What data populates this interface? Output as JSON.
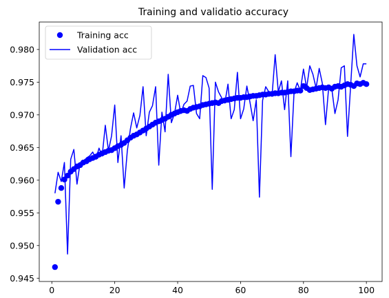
{
  "chart_data": {
    "type": "line",
    "title": "Training and validatio accuracy",
    "xlabel": "",
    "ylabel": "",
    "xlim": [
      -4,
      105
    ],
    "ylim": [
      0.9445,
      0.9842
    ],
    "xticks": [
      0,
      20,
      40,
      60,
      80,
      100
    ],
    "yticks": [
      0.945,
      0.95,
      0.955,
      0.96,
      0.965,
      0.97,
      0.975,
      0.98
    ],
    "ytick_labels": [
      "0.945",
      "0.950",
      "0.955",
      "0.960",
      "0.965",
      "0.970",
      "0.975",
      "0.980"
    ],
    "legend_position": "upper-left",
    "grid": false,
    "series": [
      {
        "name": "Training acc",
        "style": "markers",
        "color": "#0000ff",
        "x": [
          1,
          2,
          3,
          4,
          5,
          6,
          7,
          8,
          9,
          10,
          11,
          12,
          13,
          14,
          15,
          16,
          17,
          18,
          19,
          20,
          21,
          22,
          23,
          24,
          25,
          26,
          27,
          28,
          29,
          30,
          31,
          32,
          33,
          34,
          35,
          36,
          37,
          38,
          39,
          40,
          41,
          42,
          43,
          44,
          45,
          46,
          47,
          48,
          49,
          50,
          51,
          52,
          53,
          54,
          55,
          56,
          57,
          58,
          59,
          60,
          61,
          62,
          63,
          64,
          65,
          66,
          67,
          68,
          69,
          70,
          71,
          72,
          73,
          74,
          75,
          76,
          77,
          78,
          79,
          80,
          81,
          82,
          83,
          84,
          85,
          86,
          87,
          88,
          89,
          90,
          91,
          92,
          93,
          94,
          95,
          96,
          97,
          98,
          99,
          100
        ],
        "values": [
          0.9467,
          0.9567,
          0.9588,
          0.9601,
          0.9607,
          0.9613,
          0.9617,
          0.9621,
          0.9623,
          0.9627,
          0.9629,
          0.9632,
          0.9634,
          0.9636,
          0.9639,
          0.9641,
          0.9643,
          0.9645,
          0.9646,
          0.9649,
          0.9652,
          0.9654,
          0.9657,
          0.9661,
          0.9665,
          0.9668,
          0.967,
          0.9673,
          0.9676,
          0.9679,
          0.9682,
          0.9685,
          0.9688,
          0.969,
          0.9692,
          0.9694,
          0.9697,
          0.97,
          0.9702,
          0.9704,
          0.9706,
          0.9707,
          0.9706,
          0.9709,
          0.9711,
          0.9712,
          0.9713,
          0.9715,
          0.9716,
          0.9717,
          0.9718,
          0.9719,
          0.9718,
          0.9721,
          0.9722,
          0.9723,
          0.9724,
          0.9725,
          0.9726,
          0.9726,
          0.9727,
          0.9727,
          0.9728,
          0.9729,
          0.9729,
          0.973,
          0.9731,
          0.9731,
          0.9732,
          0.9732,
          0.9733,
          0.9733,
          0.9734,
          0.9734,
          0.9735,
          0.9736,
          0.9736,
          0.9737,
          0.9737,
          0.9744,
          0.9741,
          0.9738,
          0.9739,
          0.974,
          0.9741,
          0.9742,
          0.9741,
          0.9742,
          0.974,
          0.9743,
          0.9744,
          0.9743,
          0.9745,
          0.9747,
          0.9746,
          0.9744,
          0.9748,
          0.9747,
          0.9749,
          0.9747
        ]
      },
      {
        "name": "Validation acc",
        "style": "line",
        "color": "#0000ff",
        "x": [
          1,
          2,
          3,
          4,
          5,
          6,
          7,
          8,
          9,
          10,
          11,
          12,
          13,
          14,
          15,
          16,
          17,
          18,
          19,
          20,
          21,
          22,
          23,
          24,
          25,
          26,
          27,
          28,
          29,
          30,
          31,
          32,
          33,
          34,
          35,
          36,
          37,
          38,
          39,
          40,
          41,
          42,
          43,
          44,
          45,
          46,
          47,
          48,
          49,
          50,
          51,
          52,
          53,
          54,
          55,
          56,
          57,
          58,
          59,
          60,
          61,
          62,
          63,
          64,
          65,
          66,
          67,
          68,
          69,
          70,
          71,
          72,
          73,
          74,
          75,
          76,
          77,
          78,
          79,
          80,
          81,
          82,
          83,
          84,
          85,
          86,
          87,
          88,
          89,
          90,
          91,
          92,
          93,
          94,
          95,
          96,
          97,
          98,
          99,
          100
        ],
        "values": [
          0.958,
          0.9612,
          0.9598,
          0.9627,
          0.9487,
          0.9632,
          0.9647,
          0.9594,
          0.9627,
          0.9625,
          0.9634,
          0.9637,
          0.9643,
          0.9632,
          0.9649,
          0.9637,
          0.9684,
          0.9645,
          0.9668,
          0.9715,
          0.9627,
          0.9668,
          0.9588,
          0.9645,
          0.9679,
          0.9703,
          0.968,
          0.9699,
          0.9743,
          0.9668,
          0.9704,
          0.9714,
          0.9743,
          0.9623,
          0.9704,
          0.9674,
          0.9762,
          0.9688,
          0.9702,
          0.973,
          0.9702,
          0.9716,
          0.9721,
          0.9744,
          0.9745,
          0.9702,
          0.9694,
          0.976,
          0.9757,
          0.9741,
          0.9586,
          0.975,
          0.9735,
          0.9726,
          0.9718,
          0.9747,
          0.9694,
          0.9708,
          0.9765,
          0.9694,
          0.9709,
          0.9744,
          0.9719,
          0.9691,
          0.9723,
          0.9574,
          0.9722,
          0.9743,
          0.9735,
          0.9729,
          0.9792,
          0.9735,
          0.9752,
          0.9708,
          0.9752,
          0.9636,
          0.9734,
          0.9749,
          0.9737,
          0.977,
          0.9741,
          0.9775,
          0.9762,
          0.9741,
          0.9771,
          0.9748,
          0.9685,
          0.9741,
          0.974,
          0.9702,
          0.9723,
          0.9772,
          0.9775,
          0.9667,
          0.9745,
          0.9823,
          0.9775,
          0.9758,
          0.9778,
          0.9778
        ]
      }
    ]
  }
}
